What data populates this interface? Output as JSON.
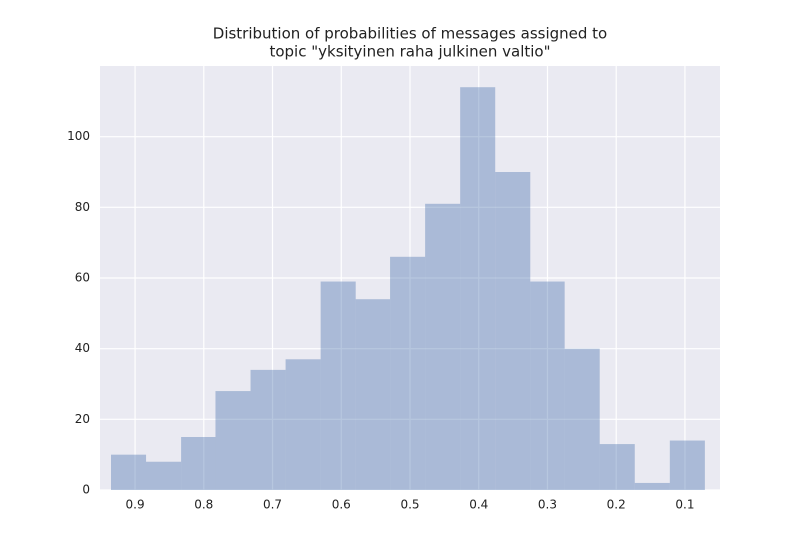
{
  "chart_data": {
    "type": "histogram",
    "title": [
      "Distribution of probabilities of messages assigned to",
      "topic \"yksityinen raha julkinen valtio\""
    ],
    "bins": [
      0.935,
      0.884,
      0.833,
      0.783,
      0.732,
      0.681,
      0.63,
      0.579,
      0.529,
      0.478,
      0.427,
      0.376,
      0.325,
      0.275,
      0.224,
      0.173,
      0.122,
      0.071
    ],
    "values": [
      10,
      8,
      15,
      28,
      34,
      37,
      59,
      54,
      66,
      81,
      114,
      90,
      59,
      40,
      13,
      2,
      14
    ],
    "color": "#4c72b0",
    "xlim": [
      0.951,
      0.049
    ],
    "xticks": [
      0.9,
      0.8,
      0.7,
      0.6,
      0.5,
      0.4,
      0.3,
      0.2,
      0.1
    ],
    "ylim": [
      0,
      120
    ],
    "yticks": [
      0,
      20,
      40,
      60,
      80,
      100
    ],
    "grid": true
  }
}
